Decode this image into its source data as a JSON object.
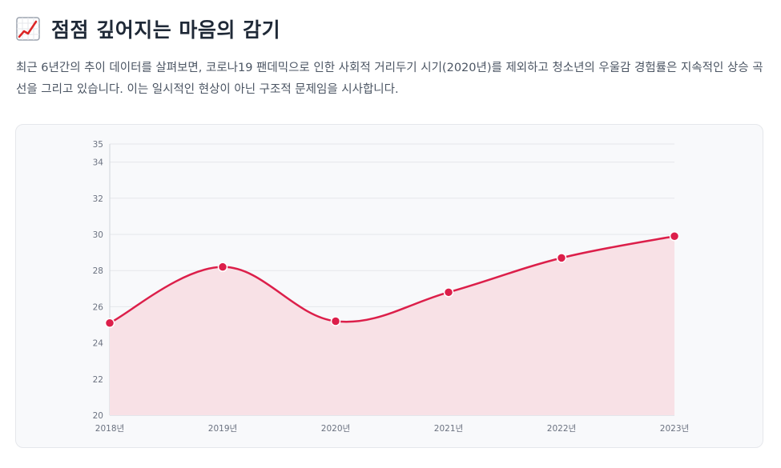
{
  "header": {
    "icon": "chart-increasing-icon",
    "title": "점점 깊어지는 마음의 감기",
    "description": "최근 6년간의 추이 데이터를 살펴보면, 코로나19 팬데믹으로 인한 사회적 거리두기 시기(2020년)를 제외하고 청소년의 우울감 경험률은 지속적인 상승 곡선을 그리고 있습니다. 이는 일시적인 현상이 아닌 구조적 문제임을 시사합니다."
  },
  "colors": {
    "line": "#dc1f4a",
    "fill": "#f8e1e6",
    "grid": "#e5e7eb",
    "axis": "#d1d5db",
    "card": "#f8f9fb"
  },
  "chart_data": {
    "type": "area",
    "title": "",
    "xlabel": "",
    "ylabel": "",
    "categories": [
      "2018년",
      "2019년",
      "2020년",
      "2021년",
      "2022년",
      "2023년"
    ],
    "series": [
      {
        "name": "우울감 경험률",
        "values": [
          25.1,
          28.2,
          25.2,
          26.8,
          28.7,
          29.9
        ]
      }
    ],
    "ylim": [
      20,
      35
    ],
    "yticks": [
      20,
      22,
      24,
      26,
      28,
      30,
      32,
      34,
      35
    ],
    "grid": true,
    "legend": "none"
  }
}
